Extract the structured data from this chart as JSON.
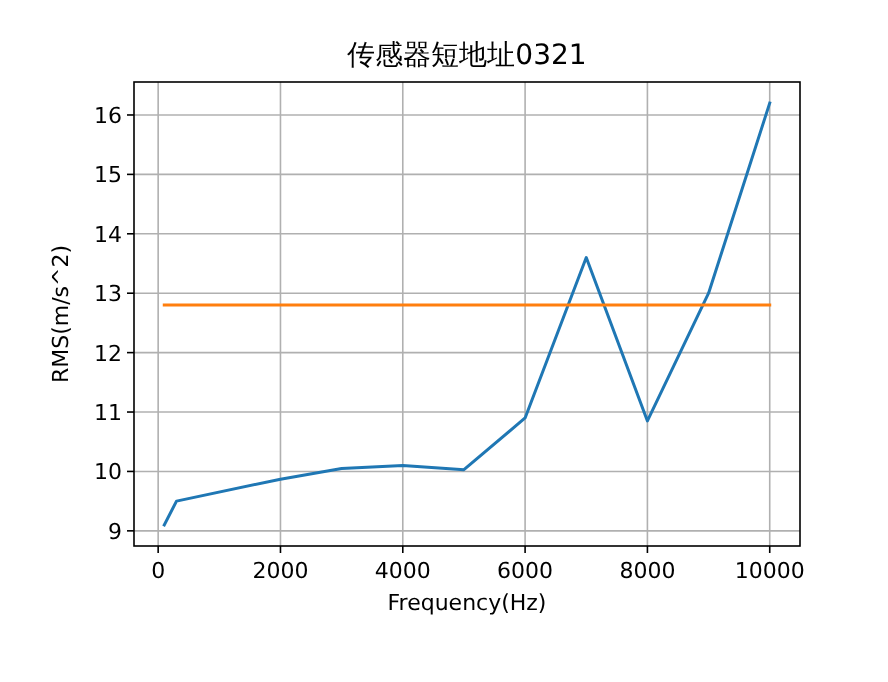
{
  "chart_data": {
    "type": "line",
    "title": "传感器短地址0321",
    "xlabel": "Frequency(Hz)",
    "ylabel": "RMS(m/s^2)",
    "series": [
      {
        "color": "#1f77b4",
        "x": [
          100,
          300,
          2000,
          3000,
          4000,
          5000,
          6000,
          7000,
          8000,
          9000,
          10000
        ],
        "values": [
          9.1,
          9.5,
          9.87,
          10.05,
          10.1,
          10.03,
          10.9,
          13.6,
          10.85,
          13.0,
          16.2
        ]
      },
      {
        "color": "#ff7f0e",
        "x": [
          100,
          10000
        ],
        "values": [
          12.8,
          12.8
        ]
      }
    ],
    "xlim": [
      -395,
      10495
    ],
    "ylim": [
      8.745,
      16.555
    ],
    "xticks": [
      0,
      2000,
      4000,
      6000,
      8000,
      10000
    ],
    "yticks": [
      9,
      10,
      11,
      12,
      13,
      14,
      15,
      16
    ],
    "grid": true,
    "marker": "none",
    "line_style": "solid"
  }
}
